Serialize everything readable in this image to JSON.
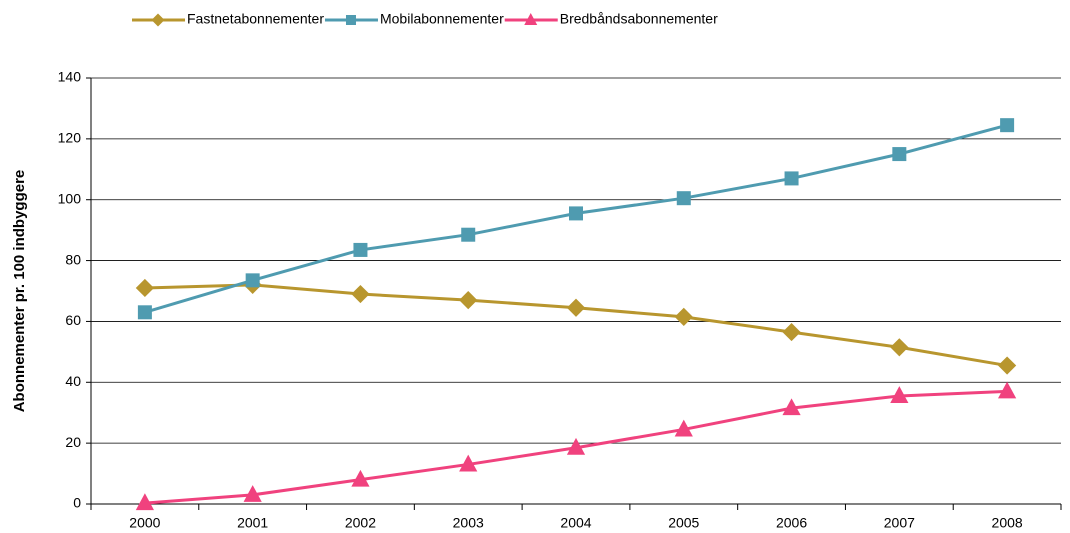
{
  "chart_data": {
    "type": "line",
    "y_label": "Abonnementer pr. 100 indbyggere",
    "categories": [
      "2000",
      "2001",
      "2002",
      "2003",
      "2004",
      "2005",
      "2006",
      "2007",
      "2008"
    ],
    "series": [
      {
        "name": "Fastnetabonnementer",
        "color": "#b8962e",
        "marker": "diamond",
        "values": [
          71,
          72,
          69,
          67,
          64.5,
          61.5,
          56.5,
          51.5,
          45.5
        ]
      },
      {
        "name": "Mobilabonnementer",
        "color": "#4f9bb0",
        "marker": "square",
        "values": [
          63,
          73.5,
          83.5,
          88.5,
          95.5,
          100.5,
          107,
          115,
          124.5
        ]
      },
      {
        "name": "Bredbåndsabonnementer",
        "color": "#f0427e",
        "marker": "triangle",
        "values": [
          0.3,
          3,
          8,
          13,
          18.5,
          24.5,
          31.5,
          35.5,
          37
        ]
      }
    ],
    "ylim": [
      0,
      140
    ],
    "yticks": [
      0,
      20,
      40,
      60,
      80,
      100,
      120,
      140
    ],
    "grid": true,
    "legend": "top"
  }
}
